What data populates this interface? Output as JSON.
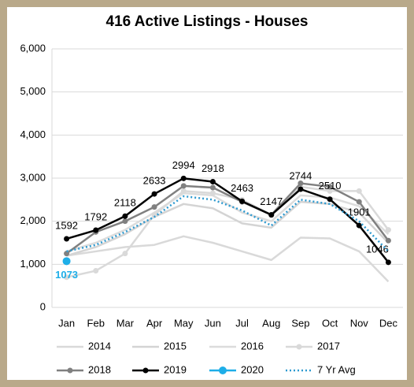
{
  "chart_data": {
    "type": "line",
    "title": "416 Active Listings - Houses",
    "categories": [
      "Jan",
      "Feb",
      "Mar",
      "Apr",
      "May",
      "Jun",
      "Jul",
      "Aug",
      "Sep",
      "Oct",
      "Nov",
      "Dec"
    ],
    "ylim": [
      0,
      6000
    ],
    "yticks": [
      0,
      {
        "value": 1000,
        "label": "1,000"
      },
      {
        "value": 2000,
        "label": "2,000"
      },
      {
        "value": 3000,
        "label": "3,000"
      },
      {
        "value": 4000,
        "label": "4,000"
      },
      {
        "value": 5000,
        "label": "5,000"
      },
      {
        "value": 6000,
        "label": "6,000"
      }
    ],
    "grid": true,
    "series": [
      {
        "name": "2014",
        "color": "#d9d9d9",
        "markers": false,
        "values": [
          1200,
          1300,
          1400,
          1450,
          1650,
          1500,
          1300,
          1100,
          1620,
          1600,
          1300,
          600
        ]
      },
      {
        "name": "2015",
        "color": "#d4d4d4",
        "markers": false,
        "values": [
          1200,
          1400,
          1700,
          2100,
          2400,
          2300,
          1950,
          1850,
          2450,
          2400,
          2200,
          1500
        ]
      },
      {
        "name": "2016",
        "color": "#dcdcdc",
        "markers": false,
        "values": [
          1300,
          1500,
          1800,
          2200,
          2650,
          2600,
          2200,
          2000,
          2600,
          2550,
          2350,
          1700
        ]
      },
      {
        "name": "2017",
        "color": "#d9d9d9",
        "markers": true,
        "values": [
          700,
          850,
          1250,
          2150,
          2700,
          2650,
          2500,
          2150,
          2800,
          2700,
          2700,
          1800
        ]
      },
      {
        "name": "2018",
        "color": "#808080",
        "markers": true,
        "values": [
          1250,
          1750,
          2000,
          2330,
          2820,
          2780,
          2450,
          2150,
          2880,
          2800,
          2450,
          1550
        ]
      },
      {
        "name": "2019",
        "color": "#000000",
        "markers": true,
        "labels": true,
        "values": [
          1592,
          1792,
          2118,
          2633,
          2994,
          2918,
          2463,
          2147,
          2744,
          2510,
          1901,
          1046
        ]
      },
      {
        "name": "2020",
        "color": "#1eaee8",
        "markers": true,
        "labels": true,
        "values": [
          1073,
          null,
          null,
          null,
          null,
          null,
          null,
          null,
          null,
          null,
          null,
          null
        ]
      },
      {
        "name": "7 Yr Avg",
        "color": "#2e9ad0",
        "markers": false,
        "dotted": true,
        "values": [
          1300,
          1450,
          1750,
          2100,
          2580,
          2500,
          2250,
          1900,
          2500,
          2400,
          2000,
          1300
        ]
      }
    ]
  }
}
